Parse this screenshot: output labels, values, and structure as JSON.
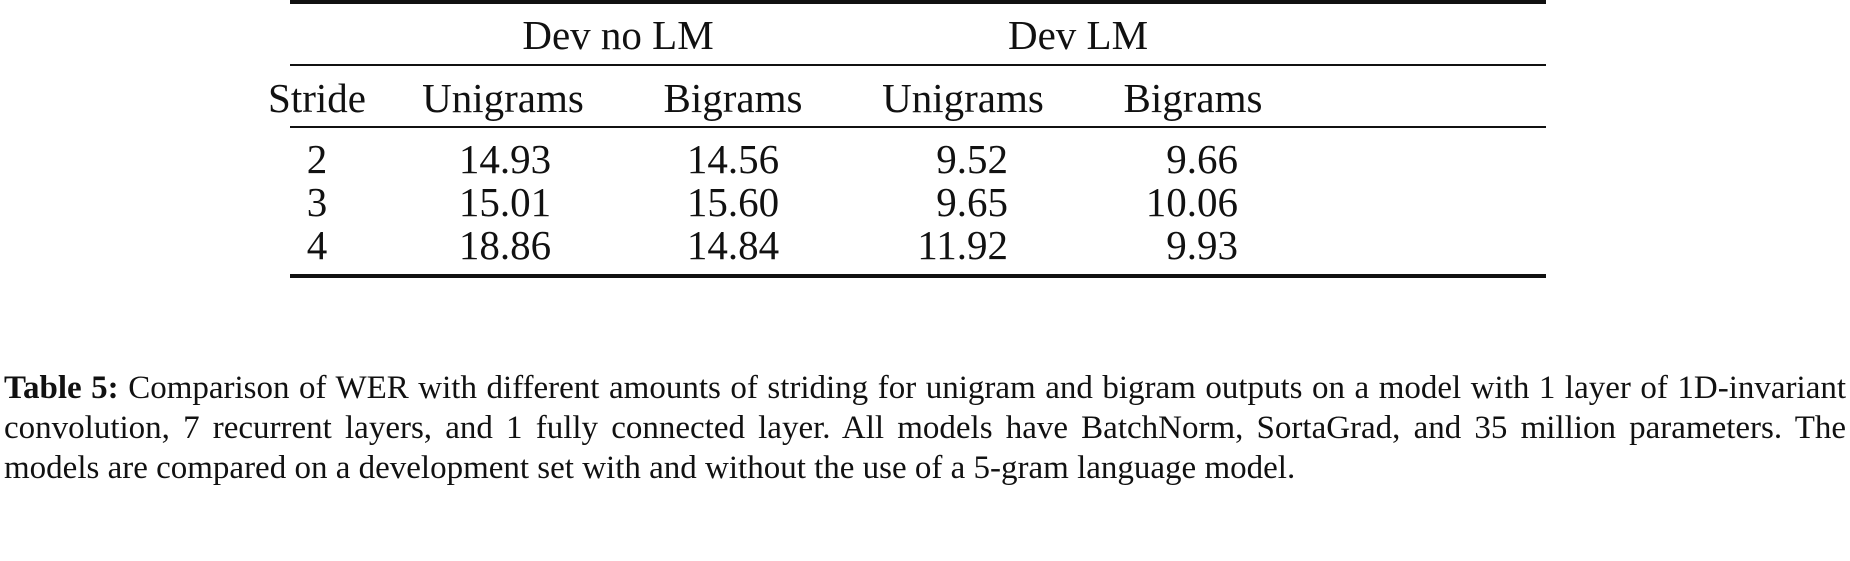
{
  "table": {
    "group_headers": [
      "Dev no LM",
      "Dev LM"
    ],
    "columns": [
      "Stride",
      "Unigrams",
      "Bigrams",
      "Unigrams",
      "Bigrams"
    ],
    "rows": [
      [
        "2",
        "14.93",
        "14.56",
        "9.52",
        "9.66"
      ],
      [
        "3",
        "15.01",
        "15.60",
        "9.65",
        "10.06"
      ],
      [
        "4",
        "18.86",
        "14.84",
        "11.92",
        "9.93"
      ]
    ]
  },
  "caption": {
    "label": "Table 5:",
    "text": "Comparison of WER with different amounts of striding for unigram and bigram outputs on a model with 1 layer of 1D-invariant convolution, 7 recurrent layers, and 1 fully connected layer.  All models have BatchNorm, SortaGrad, and 35 million parameters. The models are compared on a development set with and without the use of a 5-gram language model."
  }
}
